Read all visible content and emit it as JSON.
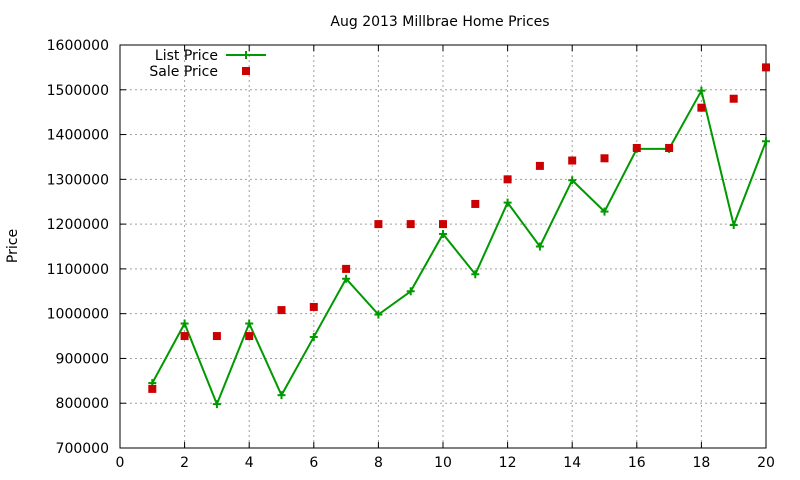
{
  "chart_data": {
    "type": "line",
    "title": "Aug 2013 Millbrae Home Prices",
    "xlabel": "",
    "ylabel": "Price",
    "xlim": [
      0,
      20
    ],
    "ylim": [
      700000,
      1600000
    ],
    "x_ticks": [
      0,
      2,
      4,
      6,
      8,
      10,
      12,
      14,
      16,
      18,
      20
    ],
    "y_ticks": [
      700000,
      800000,
      900000,
      1000000,
      1100000,
      1200000,
      1300000,
      1400000,
      1500000,
      1600000
    ],
    "grid": true,
    "legend_position": "top-left",
    "series": [
      {
        "name": "List Price",
        "style": "line-points",
        "color": "#009900",
        "marker": "plus",
        "x": [
          1,
          2,
          3,
          4,
          5,
          6,
          7,
          8,
          9,
          10,
          11,
          12,
          13,
          14,
          15,
          16,
          17,
          18,
          19,
          20
        ],
        "values": [
          845000,
          978000,
          798000,
          978000,
          818000,
          948000,
          1078000,
          998000,
          1050000,
          1178000,
          1088000,
          1248000,
          1150000,
          1298000,
          1228000,
          1368000,
          1368000,
          1498000,
          1198000,
          1385000
        ]
      },
      {
        "name": "Sale Price",
        "style": "points",
        "color": "#cc0000",
        "marker": "square",
        "x": [
          1,
          2,
          3,
          4,
          5,
          6,
          7,
          8,
          9,
          10,
          11,
          12,
          13,
          14,
          15,
          16,
          17,
          18,
          19,
          20
        ],
        "values": [
          832000,
          950000,
          950000,
          950000,
          1008000,
          1015000,
          1100000,
          1200000,
          1200000,
          1200000,
          1245000,
          1300000,
          1330000,
          1342000,
          1347000,
          1370000,
          1370000,
          1460000,
          1480000,
          1550000
        ]
      }
    ]
  }
}
